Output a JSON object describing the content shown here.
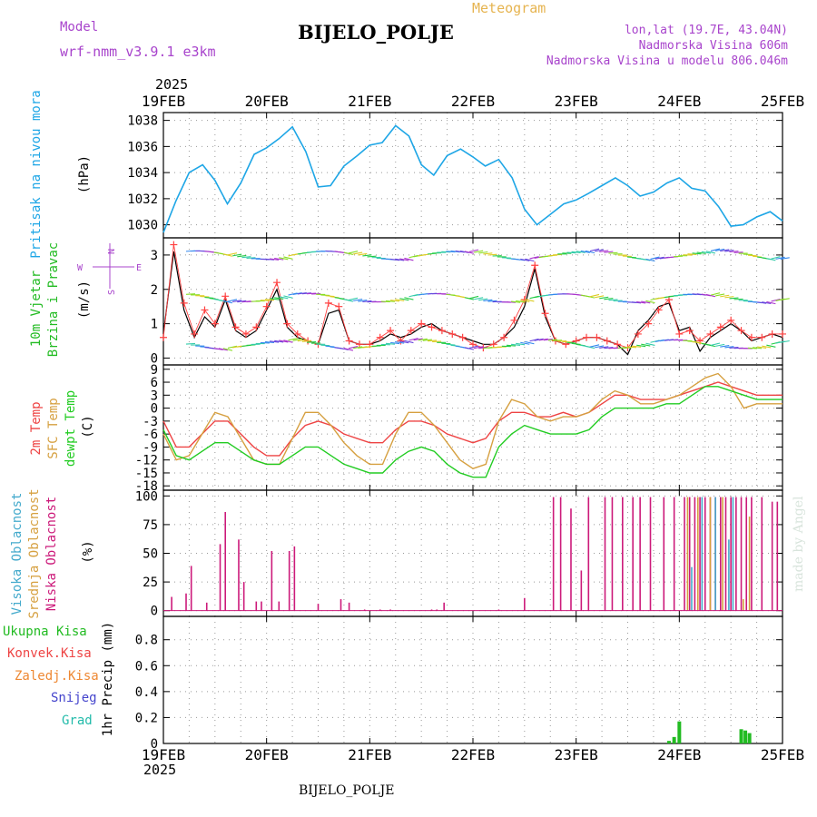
{
  "header": {
    "model_label": "Model",
    "model_name": "wrf-nmm_v3.9.1  e3km",
    "chart_kind": "Meteogram",
    "station": "BIJELO_POLJE",
    "lonlat": "lon,lat (19.7E, 43.04N)",
    "elevation": "Nadmorska Visina 606m",
    "model_elevation": "Nadmorska Visina u modelu 806.046m",
    "footer_station": "BIJELO_POLJE",
    "credit": "made by Angel"
  },
  "time_axis": {
    "year": "2025",
    "ticks": [
      "19FEB",
      "20FEB",
      "21FEB",
      "22FEB",
      "23FEB",
      "24FEB",
      "25FEB"
    ]
  },
  "colors": {
    "pressure": "#1ea6e6",
    "wind_speed": "#000000",
    "wind_plus": "#ff4040",
    "temp2m": "#ee4444",
    "sfc_temp": "#d6a040",
    "dewpoint": "#22cc22",
    "low_cloud": "#cc1a7a",
    "mid_cloud": "#d6a040",
    "high_cloud": "#44aacc",
    "precip_total": "#22bb22",
    "label_purple": "#a844cc",
    "label_orange": "#e6b450"
  },
  "chart_data": [
    {
      "id": "pressure",
      "type": "line",
      "title": "Pritisak na nivou mora",
      "ylabel": "(hPa)",
      "ylim": [
        1029,
        1038.6
      ],
      "yticks": [
        1030,
        1032,
        1034,
        1036,
        1038
      ],
      "x_unit": "days since 19FEB 00Z",
      "x": [
        0,
        0.12,
        0.25,
        0.38,
        0.5,
        0.62,
        0.75,
        0.88,
        1.0,
        1.12,
        1.25,
        1.38,
        1.5,
        1.62,
        1.75,
        1.88,
        2.0,
        2.12,
        2.25,
        2.38,
        2.5,
        2.62,
        2.75,
        2.88,
        3.0,
        3.12,
        3.25,
        3.38,
        3.5,
        3.62,
        3.75,
        3.88,
        4.0,
        4.12,
        4.25,
        4.38,
        4.5,
        4.62,
        4.75,
        4.88,
        5.0,
        5.12,
        5.25,
        5.38,
        5.5,
        5.62,
        5.75,
        5.88,
        6.0
      ],
      "values": [
        1029.4,
        1031.8,
        1034.0,
        1034.6,
        1033.4,
        1031.6,
        1033.2,
        1035.4,
        1035.9,
        1036.6,
        1037.5,
        1035.6,
        1032.9,
        1033.0,
        1034.5,
        1035.3,
        1036.1,
        1036.3,
        1037.6,
        1036.8,
        1034.6,
        1033.8,
        1035.3,
        1035.8,
        1035.2,
        1034.5,
        1035.0,
        1033.6,
        1031.2,
        1030.0,
        1030.8,
        1031.6,
        1031.9,
        1032.4,
        1033.0,
        1033.6,
        1033.0,
        1032.2,
        1032.5,
        1033.2,
        1033.6,
        1032.8,
        1032.6,
        1031.4,
        1029.9,
        1030.0,
        1030.6,
        1031.0,
        1030.3
      ]
    },
    {
      "id": "wind",
      "type": "line",
      "title": "10m Vjetar Brzina i Pravac",
      "ylabel": "(m/s)",
      "compass": [
        "N",
        "W",
        "E",
        "S"
      ],
      "ylim": [
        -0.2,
        3.5
      ],
      "yticks": [
        0,
        1,
        2,
        3
      ],
      "x": [
        0,
        0.1,
        0.2,
        0.3,
        0.4,
        0.5,
        0.6,
        0.7,
        0.8,
        0.9,
        1.0,
        1.1,
        1.2,
        1.3,
        1.4,
        1.5,
        1.6,
        1.7,
        1.8,
        1.9,
        2.0,
        2.1,
        2.2,
        2.3,
        2.4,
        2.5,
        2.6,
        2.7,
        2.8,
        2.9,
        3.0,
        3.1,
        3.2,
        3.3,
        3.4,
        3.5,
        3.6,
        3.7,
        3.8,
        3.9,
        4.0,
        4.1,
        4.2,
        4.3,
        4.4,
        4.5,
        4.6,
        4.7,
        4.8,
        4.9,
        5.0,
        5.1,
        5.2,
        5.3,
        5.4,
        5.5,
        5.6,
        5.7,
        5.8,
        5.9,
        6.0
      ],
      "speed": [
        0.7,
        3.1,
        1.4,
        0.6,
        1.2,
        0.9,
        1.7,
        0.8,
        0.6,
        0.8,
        1.4,
        2.0,
        0.9,
        0.6,
        0.5,
        0.4,
        1.3,
        1.4,
        0.5,
        0.4,
        0.4,
        0.5,
        0.7,
        0.6,
        0.7,
        0.9,
        1.0,
        0.8,
        0.7,
        0.6,
        0.5,
        0.4,
        0.4,
        0.6,
        0.9,
        1.5,
        2.6,
        1.2,
        0.5,
        0.4,
        0.5,
        0.6,
        0.6,
        0.5,
        0.4,
        0.1,
        0.8,
        1.1,
        1.5,
        1.6,
        0.8,
        0.9,
        0.2,
        0.6,
        0.8,
        1.0,
        0.8,
        0.5,
        0.6,
        0.7,
        0.6
      ],
      "gust_markers": [
        0.6,
        3.3,
        1.6,
        0.7,
        1.4,
        1.0,
        1.8,
        0.9,
        0.7,
        0.9,
        1.5,
        2.2,
        1.0,
        0.7,
        0.5,
        0.4,
        1.6,
        1.5,
        0.5,
        0.4,
        0.4,
        0.6,
        0.8,
        0.5,
        0.8,
        1.0,
        0.9,
        0.8,
        0.7,
        0.6,
        0.4,
        0.3,
        0.4,
        0.6,
        1.1,
        1.7,
        2.7,
        1.3,
        0.5,
        0.4,
        0.5,
        0.6,
        0.6,
        0.5,
        0.4,
        0.3,
        0.7,
        1.0,
        1.4,
        1.7,
        0.7,
        0.8,
        0.5,
        0.7,
        0.9,
        1.1,
        0.8,
        0.6,
        0.6,
        0.7,
        0.7
      ]
    },
    {
      "id": "temperature",
      "type": "line",
      "title": "2m Temp / SFC Temp / dewpt Temp",
      "series_labels": [
        "2m Temp",
        "SFC Temp",
        "dewpt Temp"
      ],
      "ylabel": "(C)",
      "ylim": [
        -19,
        10
      ],
      "yticks": [
        9,
        6,
        3,
        0,
        -3,
        -6,
        -9,
        -12,
        -15,
        -18
      ],
      "x": [
        0,
        0.125,
        0.25,
        0.375,
        0.5,
        0.625,
        0.75,
        0.875,
        1.0,
        1.125,
        1.25,
        1.375,
        1.5,
        1.625,
        1.75,
        1.875,
        2.0,
        2.125,
        2.25,
        2.375,
        2.5,
        2.625,
        2.75,
        2.875,
        3.0,
        3.125,
        3.25,
        3.375,
        3.5,
        3.625,
        3.75,
        3.875,
        4.0,
        4.125,
        4.25,
        4.375,
        4.5,
        4.625,
        4.75,
        4.875,
        5.0,
        5.125,
        5.25,
        5.375,
        5.5,
        5.625,
        5.75,
        5.875,
        6.0
      ],
      "series": [
        {
          "name": "2m Temp",
          "values": [
            -3,
            -9,
            -9,
            -6,
            -3,
            -3,
            -6,
            -9,
            -11,
            -11,
            -7,
            -4,
            -3,
            -4,
            -6,
            -7,
            -8,
            -8,
            -5,
            -3,
            -3,
            -4,
            -6,
            -7,
            -8,
            -7,
            -3,
            -1,
            -1,
            -2,
            -2,
            -1,
            -2,
            -1,
            1,
            3,
            3,
            2,
            2,
            2,
            3,
            4,
            5,
            6,
            5,
            4,
            3,
            3,
            3
          ]
        },
        {
          "name": "SFC Temp",
          "values": [
            -6,
            -12,
            -11,
            -6,
            -1,
            -2,
            -7,
            -12,
            -13,
            -13,
            -7,
            -1,
            -1,
            -4,
            -8,
            -11,
            -13,
            -13,
            -6,
            -1,
            -1,
            -4,
            -8,
            -12,
            -14,
            -13,
            -3,
            2,
            1,
            -2,
            -3,
            -2,
            -2,
            -1,
            2,
            4,
            3,
            1,
            1,
            2,
            3,
            5,
            7,
            8,
            5,
            0,
            1,
            1,
            1
          ]
        },
        {
          "name": "dewpt Temp",
          "values": [
            -5,
            -11,
            -12,
            -10,
            -8,
            -8,
            -10,
            -12,
            -13,
            -13,
            -11,
            -9,
            -9,
            -11,
            -13,
            -14,
            -15,
            -15,
            -12,
            -10,
            -9,
            -10,
            -13,
            -15,
            -16,
            -16,
            -9,
            -6,
            -4,
            -5,
            -6,
            -6,
            -6,
            -5,
            -2,
            0,
            0,
            0,
            0,
            1,
            1,
            3,
            5,
            5,
            4,
            3,
            2,
            2,
            2
          ]
        }
      ]
    },
    {
      "id": "cloud",
      "type": "bar",
      "title": "Visoka Oblacnost / Srednja Oblacnost / Niska Oblacnost",
      "series_labels": [
        "Visoka Oblacnost",
        "Srednja Oblacnost",
        "Niska Oblacnost"
      ],
      "ylabel": "(%)",
      "ylim": [
        -5,
        105
      ],
      "yticks": [
        0,
        25,
        50,
        75,
        100
      ],
      "series": [
        {
          "name": "Niska Oblacnost",
          "x": [
            0.08,
            0.22,
            0.27,
            0.42,
            0.55,
            0.6,
            0.73,
            0.78,
            0.9,
            0.95,
            1.05,
            1.12,
            1.22,
            1.27,
            1.5,
            1.72,
            1.8,
            1.95,
            2.1,
            2.2,
            2.6,
            2.65,
            2.72,
            3.25,
            3.5,
            3.78,
            3.85,
            3.95,
            4.05,
            4.12,
            4.28,
            4.35,
            4.45,
            4.55,
            4.62,
            4.72,
            4.85,
            4.95,
            5.05,
            5.1,
            5.15,
            5.2,
            5.25,
            5.3,
            5.35,
            5.4,
            5.45,
            5.5,
            5.55,
            5.6,
            5.65,
            5.7,
            5.8,
            5.9,
            5.95
          ],
          "values": [
            12,
            15,
            39,
            7,
            58,
            86,
            62,
            25,
            8,
            8,
            52,
            8,
            52,
            56,
            6,
            10,
            7,
            1,
            1,
            1,
            1,
            1,
            7,
            1,
            11,
            99,
            99,
            89,
            35,
            99,
            99,
            99,
            99,
            99,
            99,
            99,
            99,
            99,
            99,
            99,
            99,
            99,
            99,
            99,
            99,
            99,
            99,
            99,
            99,
            99,
            99,
            99,
            99,
            95,
            95
          ]
        },
        {
          "name": "Srednja Oblacnost",
          "x": [
            5.08,
            5.18,
            5.3,
            5.42,
            5.62,
            5.68
          ],
          "values": [
            99,
            99,
            99,
            99,
            10,
            82
          ]
        },
        {
          "name": "Visoka Oblacnost",
          "x": [
            5.12,
            5.22,
            5.35,
            5.48,
            5.52
          ],
          "values": [
            38,
            99,
            99,
            62,
            99
          ]
        }
      ]
    },
    {
      "id": "precip",
      "type": "bar",
      "title": "1hr Precip",
      "series_labels": [
        "Ukupna Kisa",
        "Konvek.Kisa",
        "Zaledj.Kisa",
        "Snijeg",
        "Grad"
      ],
      "ylabel": "1hr Precip (mm)",
      "ylim": [
        0,
        0.98
      ],
      "yticks": [
        0,
        0.2,
        0.4,
        0.6,
        0.8
      ],
      "series": [
        {
          "name": "Ukupna Kisa",
          "x": [
            4.9,
            4.95,
            5.0,
            5.6,
            5.64,
            5.68
          ],
          "values": [
            0.02,
            0.05,
            0.17,
            0.11,
            0.1,
            0.08
          ]
        }
      ]
    }
  ]
}
